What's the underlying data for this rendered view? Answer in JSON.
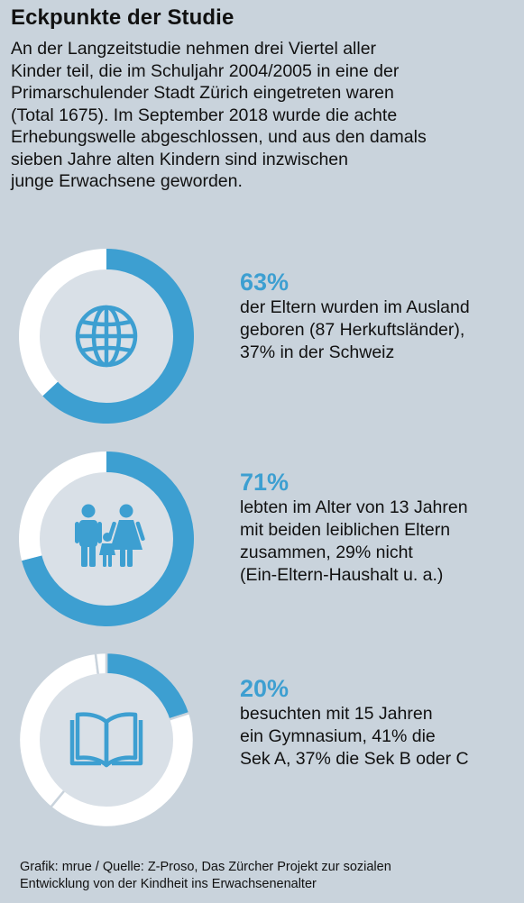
{
  "header": {
    "title": "Eckpunkte der Studie",
    "intro_lines": [
      "An der Langzeitstudie nehmen drei Viertel aller",
      "Kinder teil, die im Schuljahr 2004/2005 in eine der",
      "Primarschulender Stadt Zürich eingetreten waren",
      "(Total 1675). Im September 2018 wurde die achte",
      "Erhebungswelle abgeschlossen, und aus den damals",
      "sieben Jahre alten Kindern sind inzwischen",
      "junge Erwachsene geworden."
    ]
  },
  "colors": {
    "background": "#c9d3dc",
    "accent": "#3d9fd1",
    "ring_rest": "#ffffff",
    "inner_disc": "#d9e0e7"
  },
  "chart_data": [
    {
      "type": "pie",
      "icon": "globe-icon",
      "slices": [
        {
          "label": "Ausland",
          "value": 63
        },
        {
          "label": "Schweiz",
          "value": 37
        }
      ],
      "headline": "63%",
      "description_lines": [
        "der Eltern wurden im Ausland",
        "geboren (87 Herkuftsländer),",
        "37% in der Schweiz"
      ]
    },
    {
      "type": "pie",
      "icon": "family-icon",
      "slices": [
        {
          "label": "mit beiden leiblichen Eltern",
          "value": 71
        },
        {
          "label": "nicht",
          "value": 29
        }
      ],
      "headline": "71%",
      "description_lines": [
        "lebten im Alter von 13 Jahren",
        "mit beiden leiblichen Eltern",
        "zusammen, 29% nicht",
        "(Ein-Eltern-Haushalt u. a.)"
      ]
    },
    {
      "type": "pie",
      "icon": "open-book-icon",
      "slices": [
        {
          "label": "Gymnasium",
          "value": 20
        },
        {
          "label": "Sek A",
          "value": 41
        },
        {
          "label": "Sek B oder C",
          "value": 37
        },
        {
          "label": "",
          "value": 2
        }
      ],
      "headline": "20%",
      "description_lines": [
        "besuchten mit 15 Jahren",
        "ein Gymnasium, 41% die",
        "Sek A, 37% die Sek B oder C"
      ]
    }
  ],
  "footer": {
    "lines": [
      "Grafik: mrue / Quelle: Z-Proso, Das Zürcher Projekt zur sozialen",
      "Entwicklung von der Kindheit ins Erwachsenenalter"
    ]
  }
}
